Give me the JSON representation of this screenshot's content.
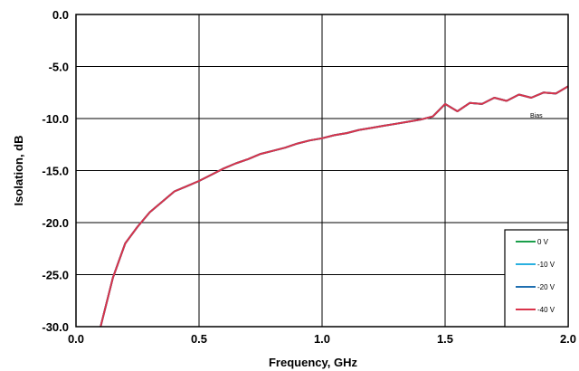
{
  "chart_data": {
    "type": "line",
    "title": "",
    "xlabel": "Frequency, GHz",
    "ylabel": "Isolation, dB",
    "xlim": [
      0,
      2.0
    ],
    "ylim": [
      -30,
      0
    ],
    "grid": true,
    "x_ticks": [
      "0.0",
      "0.5",
      "1.0",
      "1.5",
      "2.0"
    ],
    "y_ticks": [
      "0.0",
      "-5.0",
      "-10.0",
      "-15.0",
      "-20.0",
      "-25.0",
      "-30.0"
    ],
    "legend_title": "Bias",
    "legend_position": "bottom-right",
    "x": [
      0.1,
      0.15,
      0.2,
      0.25,
      0.3,
      0.35,
      0.4,
      0.45,
      0.5,
      0.55,
      0.6,
      0.65,
      0.7,
      0.75,
      0.8,
      0.85,
      0.9,
      0.95,
      1.0,
      1.05,
      1.1,
      1.15,
      1.2,
      1.25,
      1.3,
      1.35,
      1.4,
      1.45,
      1.5,
      1.55,
      1.6,
      1.65,
      1.7,
      1.75,
      1.8,
      1.85,
      1.9,
      1.95,
      2.0
    ],
    "series": [
      {
        "name": "0 V",
        "color": "#1a9e4a",
        "values": [
          -30.0,
          -25.3,
          -22.0,
          -20.4,
          -19.0,
          -18.0,
          -17.0,
          -16.5,
          -16.0,
          -15.4,
          -14.8,
          -14.3,
          -13.9,
          -13.4,
          -13.1,
          -12.8,
          -12.4,
          -12.1,
          -11.9,
          -11.6,
          -11.4,
          -11.1,
          -10.9,
          -10.7,
          -10.5,
          -10.3,
          -10.1,
          -9.8,
          -8.6,
          -9.3,
          -8.5,
          -8.6,
          -8.0,
          -8.3,
          -7.7,
          -8.0,
          -7.5,
          -7.6,
          -6.9
        ]
      },
      {
        "name": "-10 V",
        "color": "#2ab0e0",
        "values": [
          -30.0,
          -25.3,
          -22.0,
          -20.4,
          -19.0,
          -18.0,
          -17.0,
          -16.5,
          -16.0,
          -15.4,
          -14.8,
          -14.3,
          -13.9,
          -13.4,
          -13.1,
          -12.8,
          -12.4,
          -12.1,
          -11.9,
          -11.6,
          -11.4,
          -11.1,
          -10.9,
          -10.7,
          -10.5,
          -10.3,
          -10.1,
          -9.8,
          -8.6,
          -9.3,
          -8.5,
          -8.6,
          -8.0,
          -8.3,
          -7.7,
          -8.0,
          -7.5,
          -7.6,
          -6.9
        ]
      },
      {
        "name": "-20 V",
        "color": "#1f6fb0",
        "values": [
          -30.0,
          -25.3,
          -22.0,
          -20.4,
          -19.0,
          -18.0,
          -17.0,
          -16.5,
          -16.0,
          -15.4,
          -14.8,
          -14.3,
          -13.9,
          -13.4,
          -13.1,
          -12.8,
          -12.4,
          -12.1,
          -11.9,
          -11.6,
          -11.4,
          -11.1,
          -10.9,
          -10.7,
          -10.5,
          -10.3,
          -10.1,
          -9.8,
          -8.6,
          -9.3,
          -8.5,
          -8.6,
          -8.0,
          -8.3,
          -7.7,
          -8.0,
          -7.5,
          -7.6,
          -6.9
        ]
      },
      {
        "name": "-40 V",
        "color": "#d9334a",
        "values": [
          -30.0,
          -25.3,
          -22.0,
          -20.4,
          -19.0,
          -18.0,
          -17.0,
          -16.5,
          -16.0,
          -15.4,
          -14.8,
          -14.3,
          -13.9,
          -13.4,
          -13.1,
          -12.8,
          -12.4,
          -12.1,
          -11.9,
          -11.6,
          -11.4,
          -11.1,
          -10.9,
          -10.7,
          -10.5,
          -10.3,
          -10.1,
          -9.8,
          -8.6,
          -9.3,
          -8.5,
          -8.6,
          -8.0,
          -8.3,
          -7.7,
          -8.0,
          -7.5,
          -7.6,
          -6.9
        ]
      }
    ]
  }
}
